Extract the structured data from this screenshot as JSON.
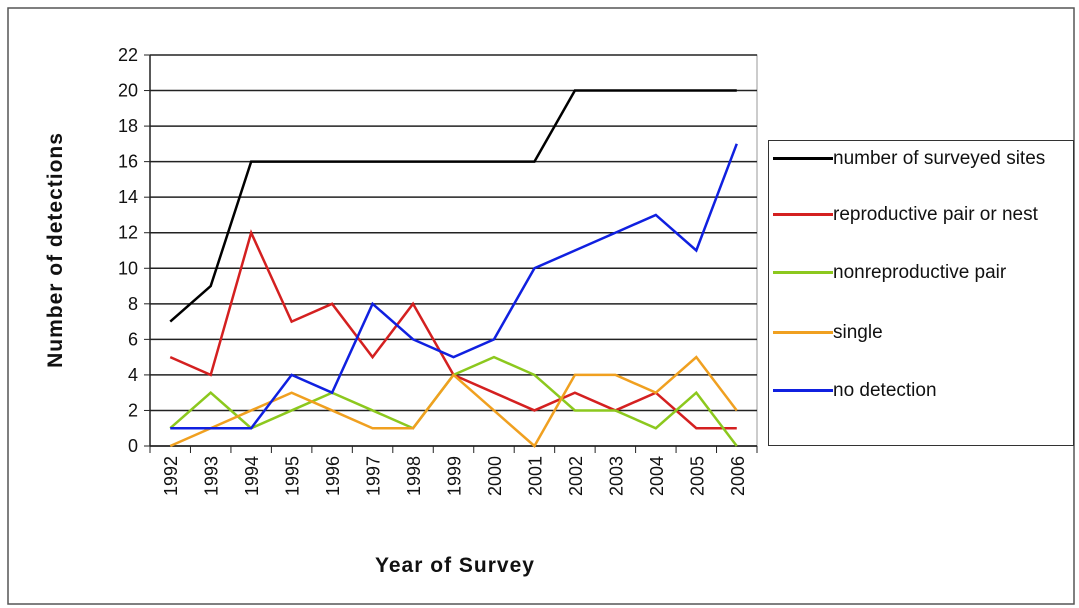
{
  "chart_data": {
    "type": "line",
    "x_label": "Year of Survey",
    "y_label": "Number of detections",
    "categories": [
      "1992",
      "1993",
      "1994",
      "1995",
      "1996",
      "1997",
      "1998",
      "1999",
      "2000",
      "2001",
      "2002",
      "2003",
      "2004",
      "2005",
      "2006"
    ],
    "series": [
      {
        "name": "number of surveyed sites",
        "color": "#000000",
        "values": [
          7,
          9,
          16,
          16,
          16,
          16,
          16,
          16,
          16,
          16,
          20,
          20,
          20,
          20,
          20
        ]
      },
      {
        "name": "reproductive pair or nest",
        "color": "#d42020",
        "values": [
          5,
          4,
          12,
          7,
          8,
          5,
          8,
          4,
          3,
          2,
          3,
          2,
          3,
          1,
          1
        ]
      },
      {
        "name": "nonreproductive pair",
        "color": "#8cc81e",
        "values": [
          1,
          3,
          1,
          2,
          3,
          2,
          1,
          4,
          5,
          4,
          2,
          2,
          1,
          3,
          0
        ]
      },
      {
        "name": "single",
        "color": "#f0a020",
        "values": [
          0,
          1,
          2,
          3,
          2,
          1,
          1,
          4,
          2,
          0,
          4,
          4,
          3,
          5,
          2
        ]
      },
      {
        "name": "no detection",
        "color": "#1020e0",
        "values": [
          1,
          1,
          1,
          4,
          3,
          8,
          6,
          5,
          6,
          10,
          11,
          12,
          13,
          11,
          17
        ]
      }
    ],
    "ylim": [
      0,
      22
    ],
    "yticks": [
      0,
      2,
      4,
      6,
      8,
      10,
      12,
      14,
      16,
      18,
      20,
      22
    ],
    "grid": true
  }
}
